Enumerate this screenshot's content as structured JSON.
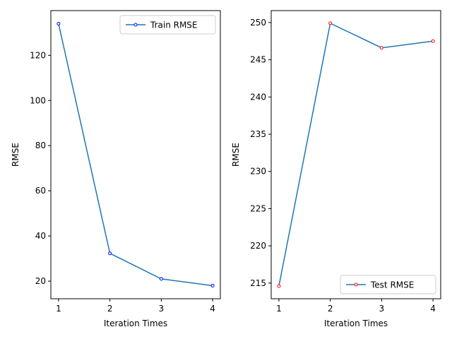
{
  "chart_data": [
    {
      "type": "line",
      "title": "",
      "xlabel": "Iteration Times",
      "ylabel": "RMSE",
      "x": [
        1,
        2,
        3,
        4
      ],
      "xlim": [
        0.85,
        4.15
      ],
      "ylim": [
        12.2,
        139.8
      ],
      "xticks": [
        1,
        2,
        3,
        4
      ],
      "yticks": [
        20,
        40,
        60,
        80,
        100,
        120
      ],
      "grid": false,
      "legend_position": "top-right",
      "series": [
        {
          "name": "Train RMSE",
          "values": [
            134.0,
            32.3,
            21.0,
            18.0
          ],
          "line_color": "#1f77b4",
          "marker_edge_color": "#0000ff",
          "marker": "circle"
        }
      ]
    },
    {
      "type": "line",
      "title": "",
      "xlabel": "Iteration Times",
      "ylabel": "RMSE",
      "x": [
        1,
        2,
        3,
        4
      ],
      "xlim": [
        0.85,
        4.15
      ],
      "ylim": [
        212.9,
        251.6
      ],
      "xticks": [
        1,
        2,
        3,
        4
      ],
      "yticks": [
        215,
        220,
        225,
        230,
        235,
        240,
        245,
        250
      ],
      "grid": false,
      "legend_position": "bottom-right",
      "series": [
        {
          "name": "Test RMSE",
          "values": [
            214.6,
            249.9,
            246.6,
            247.5
          ],
          "line_color": "#1f77b4",
          "marker_edge_color": "#ff0000",
          "marker": "circle"
        }
      ]
    }
  ]
}
